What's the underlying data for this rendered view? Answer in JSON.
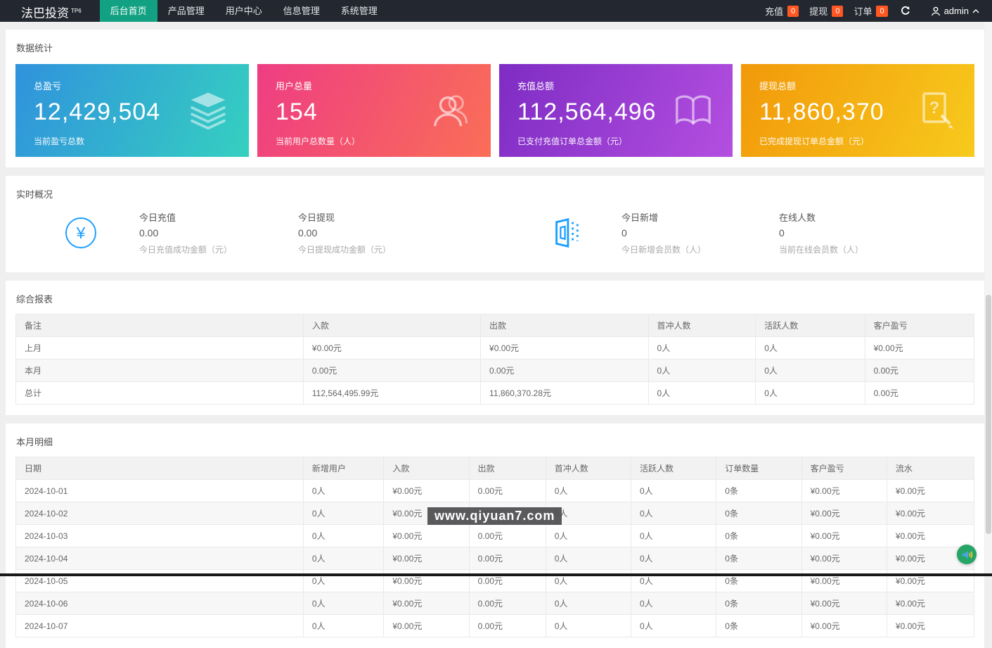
{
  "navbar": {
    "logo": "法巴投资",
    "logo_sup": "TP6",
    "menu": [
      {
        "label": "后台首页",
        "active": true
      },
      {
        "label": "产品管理",
        "active": false
      },
      {
        "label": "用户中心",
        "active": false
      },
      {
        "label": "信息管理",
        "active": false
      },
      {
        "label": "系统管理",
        "active": false
      }
    ],
    "right": {
      "recharge_label": "充值",
      "recharge_count": "0",
      "withdraw_label": "提现",
      "withdraw_count": "0",
      "order_label": "订单",
      "order_count": "0",
      "username": "admin"
    }
  },
  "stats_panel": {
    "title": "数据统计",
    "cards": [
      {
        "label": "总盈亏",
        "value": "12,429,504",
        "sub": "当前盈亏总数",
        "icon": "layers-icon",
        "gradient_from": "#3092dd",
        "gradient_to": "#35d0c0"
      },
      {
        "label": "用户总量",
        "value": "154",
        "sub": "当前用户总数量（人）",
        "icon": "users-icon",
        "gradient_from": "#ee3d83",
        "gradient_to": "#fa6e57"
      },
      {
        "label": "充值总额",
        "value": "112,564,496",
        "sub": "已支付充值订单总金额（元）",
        "icon": "book-icon",
        "gradient_from": "#7e2cc4",
        "gradient_to": "#b44fe0"
      },
      {
        "label": "提现总额",
        "value": "11,860,370",
        "sub": "已完成提现订单总金额（元）",
        "icon": "doc-edit-icon",
        "gradient_from": "#f2990a",
        "gradient_to": "#f7ca1d"
      }
    ]
  },
  "realtime_panel": {
    "title": "实时概况",
    "stats": [
      {
        "label": "今日充值",
        "value": "0.00",
        "sub": "今日充值成功金额（元）"
      },
      {
        "label": "今日提现",
        "value": "0.00",
        "sub": "今日提现成功金额（元）"
      },
      {
        "label": "今日新增",
        "value": "0",
        "sub": "今日新增会员数（人）"
      },
      {
        "label": "在线人数",
        "value": "0",
        "sub": "当前在线会员数（人）"
      }
    ],
    "icons": [
      "yen-icon",
      "building-icon"
    ]
  },
  "summary_panel": {
    "title": "综合报表",
    "headers": [
      "备注",
      "入款",
      "出款",
      "首冲人数",
      "活跃人数",
      "客户盈亏"
    ],
    "rows": [
      [
        "上月",
        "¥0.00元",
        "¥0.00元",
        "0人",
        "0人",
        "¥0.00元"
      ],
      [
        "本月",
        "0.00元",
        "0.00元",
        "0人",
        "0人",
        "0.00元"
      ],
      [
        "总计",
        "112,564,495.99元",
        "11,860,370.28元",
        "0人",
        "0人",
        "0.00元"
      ]
    ]
  },
  "detail_panel": {
    "title": "本月明细",
    "headers": [
      "日期",
      "新增用户",
      "入款",
      "出款",
      "首冲人数",
      "活跃人数",
      "订单数量",
      "客户盈亏",
      "流水"
    ],
    "rows": [
      [
        "2024-10-01",
        "0人",
        "¥0.00元",
        "0.00元",
        "0人",
        "0人",
        "0条",
        "¥0.00元",
        "¥0.00元"
      ],
      [
        "2024-10-02",
        "0人",
        "¥0.00元",
        "0.00元",
        "0人",
        "0人",
        "0条",
        "¥0.00元",
        "¥0.00元"
      ],
      [
        "2024-10-03",
        "0人",
        "¥0.00元",
        "0.00元",
        "0人",
        "0人",
        "0条",
        "¥0.00元",
        "¥0.00元"
      ],
      [
        "2024-10-04",
        "0人",
        "¥0.00元",
        "0.00元",
        "0人",
        "0人",
        "0条",
        "¥0.00元",
        "¥0.00元"
      ],
      [
        "2024-10-05",
        "0人",
        "¥0.00元",
        "0.00元",
        "0人",
        "0人",
        "0条",
        "¥0.00元",
        "¥0.00元"
      ],
      [
        "2024-10-06",
        "0人",
        "¥0.00元",
        "0.00元",
        "0人",
        "0人",
        "0条",
        "¥0.00元",
        "¥0.00元"
      ],
      [
        "2024-10-07",
        "0人",
        "¥0.00元",
        "0.00元",
        "0人",
        "0人",
        "0条",
        "¥0.00元",
        "¥0.00元"
      ]
    ]
  },
  "watermark": "www.qiyuan7.com",
  "yen_symbol": "¥",
  "colors": {
    "navbar_bg": "#23272f",
    "accent_green": "#12a182",
    "badge_orange": "#ff5722",
    "icon_blue": "#1e9fff",
    "float_button_green": "#26a566",
    "watermark_bg": "#4d4e51"
  }
}
